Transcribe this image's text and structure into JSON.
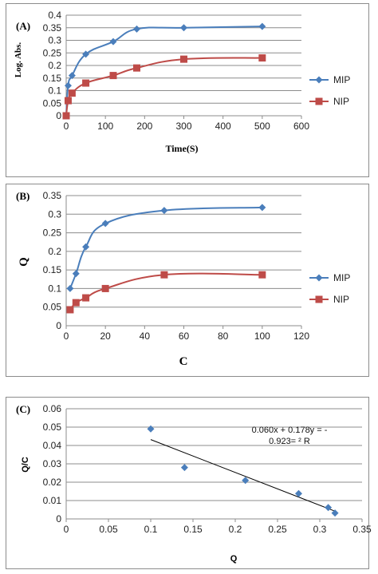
{
  "chart_data": [
    {
      "id": "A",
      "type": "line",
      "panel_label": "(A)",
      "xlabel": "Time(S)",
      "ylabel": "Log. Abs.",
      "xlim": [
        0,
        600
      ],
      "ylim": [
        0,
        0.4
      ],
      "xticks": [
        "0",
        "100",
        "200",
        "300",
        "400",
        "500",
        "600"
      ],
      "yticks": [
        "0",
        "0.05",
        "0.1",
        "0.15",
        "0.2",
        "0.25",
        "0.3",
        "0.35",
        "0.4"
      ],
      "grid": "horizontal",
      "legend_position": "right",
      "series": [
        {
          "name": "MIP",
          "color": "#4a7ebb",
          "marker": "diamond",
          "x": [
            0,
            5,
            15,
            50,
            120,
            180,
            300,
            500
          ],
          "y": [
            0,
            0.12,
            0.16,
            0.245,
            0.295,
            0.345,
            0.35,
            0.355
          ]
        },
        {
          "name": "NIP",
          "color": "#be4b48",
          "marker": "square",
          "x": [
            0,
            5,
            15,
            50,
            120,
            180,
            300,
            500
          ],
          "y": [
            0,
            0.06,
            0.09,
            0.13,
            0.16,
            0.19,
            0.225,
            0.23
          ]
        }
      ]
    },
    {
      "id": "B",
      "type": "line",
      "panel_label": "(B)",
      "xlabel": "C",
      "ylabel": "Q",
      "xlim": [
        0,
        120
      ],
      "ylim": [
        0,
        0.35
      ],
      "xticks": [
        "0",
        "20",
        "40",
        "60",
        "80",
        "100",
        "120"
      ],
      "yticks": [
        "0",
        "0.05",
        "0.1",
        "0.15",
        "0.2",
        "0.25",
        "0.3",
        "0.35"
      ],
      "grid": "horizontal",
      "legend_position": "right",
      "series": [
        {
          "name": "MIP",
          "color": "#4a7ebb",
          "marker": "diamond",
          "x": [
            2,
            5,
            10,
            20,
            50,
            100
          ],
          "y": [
            0.1,
            0.14,
            0.212,
            0.275,
            0.31,
            0.318
          ]
        },
        {
          "name": "NIP",
          "color": "#be4b48",
          "marker": "square",
          "x": [
            2,
            5,
            10,
            20,
            50,
            100
          ],
          "y": [
            0.043,
            0.062,
            0.075,
            0.1,
            0.137,
            0.137
          ]
        }
      ]
    },
    {
      "id": "C",
      "type": "scatter",
      "panel_label": "(C)",
      "xlabel": "Q",
      "ylabel": "Q/C",
      "xlim": [
        0,
        0.35
      ],
      "ylim": [
        0,
        0.06
      ],
      "xticks": [
        "0",
        "0.05",
        "0.1",
        "0.15",
        "0.2",
        "0.25",
        "0.3",
        "0.35"
      ],
      "yticks": [
        "0",
        "0.01",
        "0.02",
        "0.03",
        "0.04",
        "0.05",
        "0.06"
      ],
      "grid": "horizontal",
      "annotation": [
        "0.060x + 0.178y = -",
        "0.923= ² R"
      ],
      "series": [
        {
          "name": "",
          "color": "#4a7ebb",
          "marker": "diamond",
          "x": [
            0.1,
            0.14,
            0.212,
            0.275,
            0.31,
            0.318
          ],
          "y": [
            0.049,
            0.028,
            0.021,
            0.0138,
            0.0062,
            0.0032
          ]
        }
      ],
      "trendline": {
        "x": [
          0.1,
          0.318
        ],
        "y": [
          0.0432,
          0.0042
        ],
        "color": "#000000"
      }
    }
  ]
}
